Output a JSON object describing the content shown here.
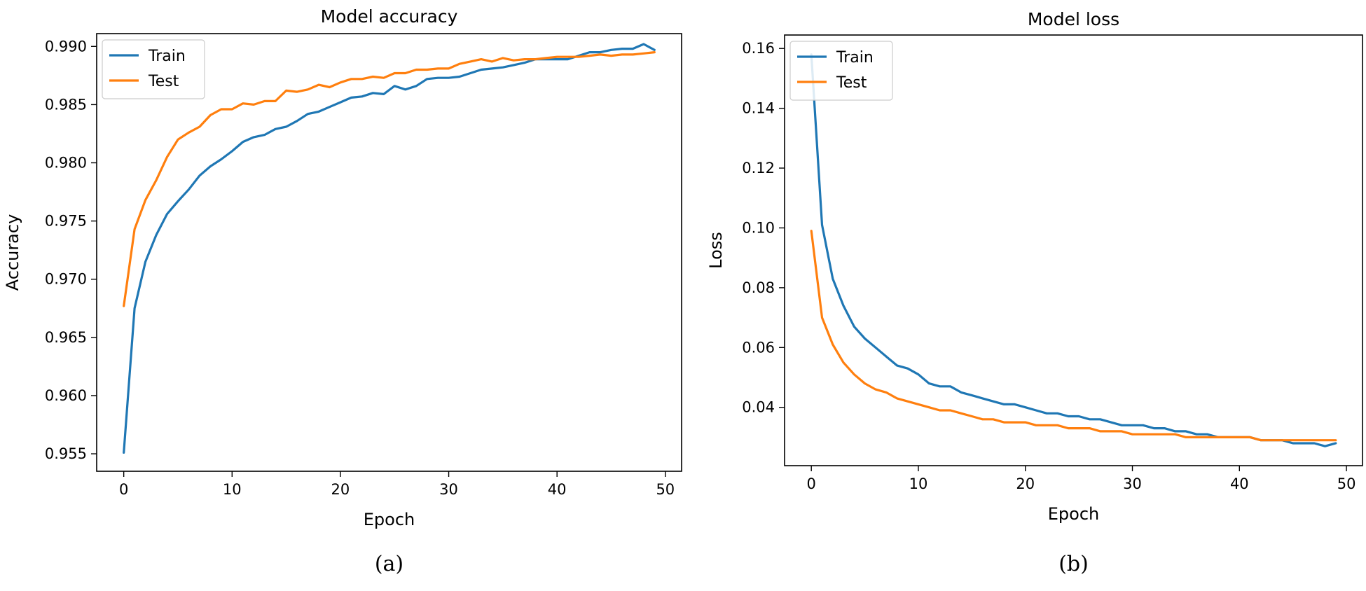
{
  "chart_data": [
    {
      "type": "line",
      "title": "Model accuracy",
      "xlabel": "Epoch",
      "ylabel": "Accuracy",
      "caption": "(a)",
      "xlim": [
        -2.5,
        51.5
      ],
      "ylim": [
        0.9535,
        0.9911
      ],
      "xticks": [
        0,
        10,
        20,
        30,
        40,
        50
      ],
      "yticks": [
        0.955,
        0.96,
        0.965,
        0.97,
        0.975,
        0.98,
        0.985,
        0.99
      ],
      "ytick_labels": [
        "0.955",
        "0.960",
        "0.965",
        "0.970",
        "0.975",
        "0.980",
        "0.985",
        "0.990"
      ],
      "grid": false,
      "legend": "upper-left",
      "x": [
        0,
        1,
        2,
        3,
        4,
        5,
        6,
        7,
        8,
        9,
        10,
        11,
        12,
        13,
        14,
        15,
        16,
        17,
        18,
        19,
        20,
        21,
        22,
        23,
        24,
        25,
        26,
        27,
        28,
        29,
        30,
        31,
        32,
        33,
        34,
        35,
        36,
        37,
        38,
        39,
        40,
        41,
        42,
        43,
        44,
        45,
        46,
        47,
        48,
        49
      ],
      "series": [
        {
          "name": "Train",
          "color": "#1f77b4",
          "values": [
            0.9551,
            0.9675,
            0.9715,
            0.9738,
            0.9756,
            0.9767,
            0.9777,
            0.9789,
            0.9797,
            0.9803,
            0.981,
            0.9818,
            0.9822,
            0.9824,
            0.9829,
            0.9831,
            0.9836,
            0.9842,
            0.9844,
            0.9848,
            0.9852,
            0.9856,
            0.9857,
            0.986,
            0.9859,
            0.9866,
            0.9863,
            0.9866,
            0.9872,
            0.9873,
            0.9873,
            0.9874,
            0.9877,
            0.988,
            0.9881,
            0.9882,
            0.9884,
            0.9886,
            0.9889,
            0.9889,
            0.9889,
            0.9889,
            0.9892,
            0.9895,
            0.9895,
            0.9897,
            0.9898,
            0.9898,
            0.9902,
            0.9897
          ]
        },
        {
          "name": "Test",
          "color": "#ff7f0e",
          "values": [
            0.9677,
            0.9743,
            0.9768,
            0.9785,
            0.9805,
            0.982,
            0.9826,
            0.9831,
            0.9841,
            0.9846,
            0.9846,
            0.9851,
            0.985,
            0.9853,
            0.9853,
            0.9862,
            0.9861,
            0.9863,
            0.9867,
            0.9865,
            0.9869,
            0.9872,
            0.9872,
            0.9874,
            0.9873,
            0.9877,
            0.9877,
            0.988,
            0.988,
            0.9881,
            0.9881,
            0.9885,
            0.9887,
            0.9889,
            0.9887,
            0.989,
            0.9888,
            0.9889,
            0.9889,
            0.989,
            0.9891,
            0.9891,
            0.9891,
            0.9892,
            0.9893,
            0.9892,
            0.9893,
            0.9893,
            0.9894,
            0.9895
          ]
        }
      ]
    },
    {
      "type": "line",
      "title": "Model loss",
      "xlabel": "Epoch",
      "ylabel": "Loss",
      "caption": "(b)",
      "xlim": [
        -2.5,
        51.5
      ],
      "ylim": [
        0.0205,
        0.1645
      ],
      "xticks": [
        0,
        10,
        20,
        30,
        40,
        50
      ],
      "yticks": [
        0.04,
        0.06,
        0.08,
        0.1,
        0.12,
        0.14,
        0.16
      ],
      "ytick_labels": [
        "0.04",
        "0.06",
        "0.08",
        "0.10",
        "0.12",
        "0.14",
        "0.16"
      ],
      "grid": false,
      "legend": "upper-left",
      "x": [
        0,
        1,
        2,
        3,
        4,
        5,
        6,
        7,
        8,
        9,
        10,
        11,
        12,
        13,
        14,
        15,
        16,
        17,
        18,
        19,
        20,
        21,
        22,
        23,
        24,
        25,
        26,
        27,
        28,
        29,
        30,
        31,
        32,
        33,
        34,
        35,
        36,
        37,
        38,
        39,
        40,
        41,
        42,
        43,
        44,
        45,
        46,
        47,
        48,
        49
      ],
      "series": [
        {
          "name": "Train",
          "color": "#1f77b4",
          "values": [
            0.158,
            0.101,
            0.083,
            0.074,
            0.067,
            0.063,
            0.06,
            0.057,
            0.054,
            0.053,
            0.051,
            0.048,
            0.047,
            0.047,
            0.045,
            0.044,
            0.043,
            0.042,
            0.041,
            0.041,
            0.04,
            0.039,
            0.038,
            0.038,
            0.037,
            0.037,
            0.036,
            0.036,
            0.035,
            0.034,
            0.034,
            0.034,
            0.033,
            0.033,
            0.032,
            0.032,
            0.031,
            0.031,
            0.03,
            0.03,
            0.03,
            0.03,
            0.029,
            0.029,
            0.029,
            0.028,
            0.028,
            0.028,
            0.027,
            0.028
          ]
        },
        {
          "name": "Test",
          "color": "#ff7f0e",
          "values": [
            0.099,
            0.07,
            0.061,
            0.055,
            0.051,
            0.048,
            0.046,
            0.045,
            0.043,
            0.042,
            0.041,
            0.04,
            0.039,
            0.039,
            0.038,
            0.037,
            0.036,
            0.036,
            0.035,
            0.035,
            0.035,
            0.034,
            0.034,
            0.034,
            0.033,
            0.033,
            0.033,
            0.032,
            0.032,
            0.032,
            0.031,
            0.031,
            0.031,
            0.031,
            0.031,
            0.03,
            0.03,
            0.03,
            0.03,
            0.03,
            0.03,
            0.03,
            0.029,
            0.029,
            0.029,
            0.029,
            0.029,
            0.029,
            0.029,
            0.029
          ]
        }
      ]
    }
  ]
}
